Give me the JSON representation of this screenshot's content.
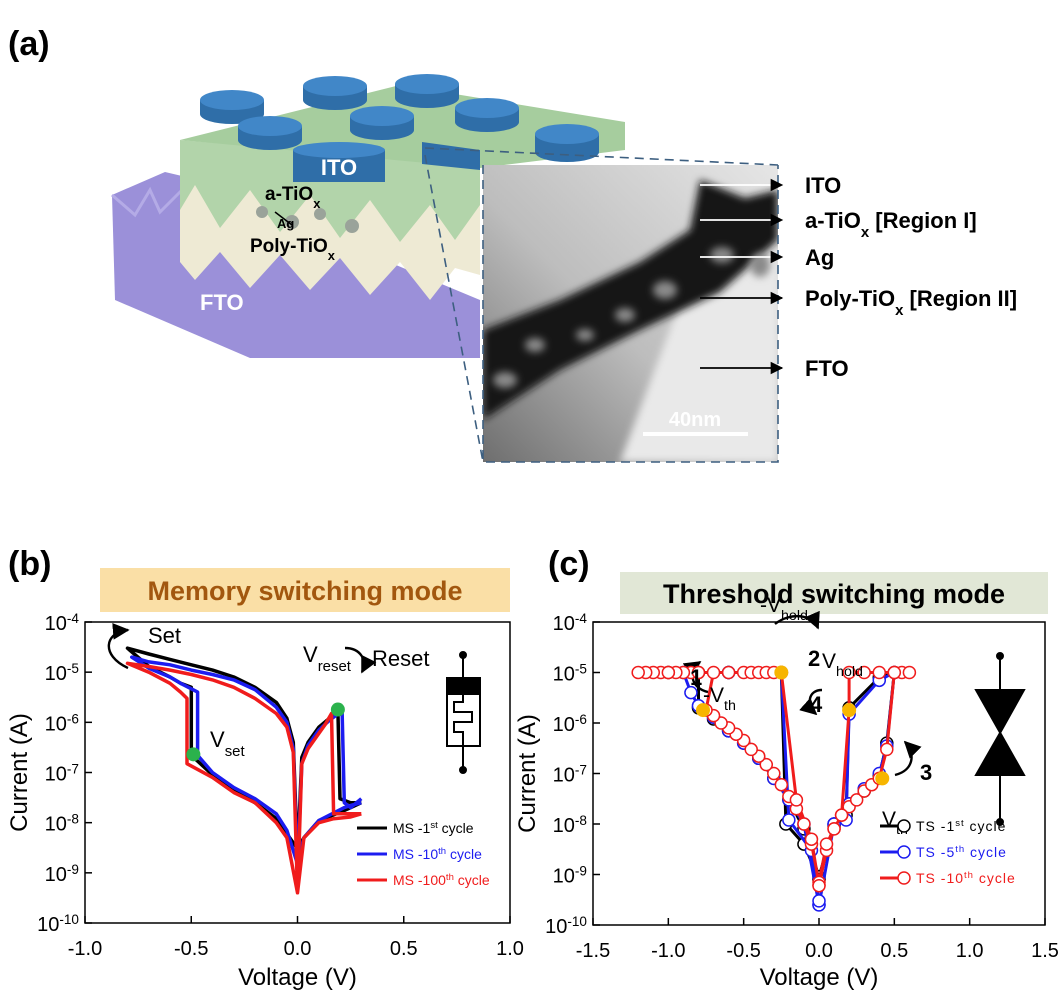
{
  "diagram": {
    "panel_label": "(a)",
    "device_labels": [
      "ITO",
      "a-TiOx",
      "Ag",
      "Poly-TiOx",
      "FTO"
    ],
    "tem_labels": [
      "ITO",
      "a-TiOx [Region I]",
      "Ag",
      "Poly-TiOx [Region II]",
      "FTO"
    ],
    "scale_bar": "40nm"
  },
  "chart_data": [
    {
      "type": "line",
      "panel_label": "(b)",
      "title": "Memory switching mode",
      "x_label": "Voltage (V)",
      "y_label": "Current (A)",
      "log_y": true,
      "xlim": [
        -1,
        1
      ],
      "xticks": [
        {
          "value": -1,
          "label": "-1.0"
        },
        -0.5,
        {
          "value": 0,
          "label": "0.0"
        },
        0.5,
        {
          "value": 1,
          "label": "1.0"
        }
      ],
      "ylim": [
        1e-10,
        0.0001
      ],
      "yticks": [
        {
          "value": 1e-10,
          "label": "10-10"
        },
        {
          "value": 1e-09,
          "label": "10-9"
        },
        {
          "value": 1e-08,
          "label": "10-8"
        },
        {
          "value": 1e-07,
          "label": "10-7"
        },
        {
          "value": 1e-06,
          "label": "10-6"
        },
        {
          "value": 1e-05,
          "label": "10-5"
        },
        {
          "value": 0.0001,
          "label": "10-4"
        }
      ],
      "legend": "lower right",
      "series": [
        {
          "name": "MS -1st cycle",
          "color": "#000000",
          "x": [
            0.3,
            0.25,
            0.2,
            0.1,
            0.03,
            0.0,
            -0.05,
            -0.1,
            -0.2,
            -0.3,
            -0.4,
            -0.5,
            -0.5,
            -0.55,
            -0.6,
            -0.7,
            -0.8,
            -0.7,
            -0.6,
            -0.5,
            -0.4,
            -0.3,
            -0.2,
            -0.1,
            -0.05,
            -0.02,
            0.0,
            0.02,
            0.05,
            0.1,
            0.15,
            0.19,
            0.2,
            0.25,
            0.3
          ],
          "values": [
            2.5e-08,
            2e-08,
            1.6e-08,
            1.1e-08,
            5e-09,
            3e-09,
            6e-09,
            1.2e-08,
            2.5e-08,
            4.5e-08,
            9e-08,
            2.2e-07,
            5e-06,
            6e-06,
            8e-06,
            1.3e-05,
            3e-05,
            2.3e-05,
            1.8e-05,
            1.4e-05,
            1.1e-05,
            8e-06,
            5e-06,
            2.5e-06,
            1.2e-06,
            4e-07,
            2e-09,
            2e-07,
            4e-07,
            8e-07,
            1.2e-06,
            1.7e-06,
            3e-08,
            2.5e-08,
            2.5e-08
          ]
        },
        {
          "name": "MS -10th cycle",
          "color": "#1c1cf0",
          "x": [
            0.3,
            0.25,
            0.22,
            0.1,
            0.03,
            0.0,
            -0.05,
            -0.1,
            -0.2,
            -0.3,
            -0.4,
            -0.47,
            -0.47,
            -0.55,
            -0.6,
            -0.7,
            -0.78,
            -0.7,
            -0.6,
            -0.5,
            -0.4,
            -0.3,
            -0.2,
            -0.1,
            -0.05,
            -0.02,
            0.0,
            0.02,
            0.05,
            0.1,
            0.15,
            0.21,
            0.22,
            0.25,
            0.3
          ],
          "values": [
            2.5e-08,
            2.2e-08,
            2e-08,
            1.1e-08,
            5e-09,
            1.5e-09,
            7e-09,
            1.5e-08,
            3e-08,
            5e-08,
            1e-07,
            2.2e-07,
            4e-06,
            6e-06,
            8e-06,
            1.2e-05,
            2e-05,
            1.6e-05,
            1.4e-05,
            1.1e-05,
            9e-06,
            7e-06,
            4.5e-06,
            2e-06,
            1e-06,
            3e-07,
            1e-09,
            1.5e-07,
            3.5e-07,
            7e-07,
            1.1e-06,
            1.7e-06,
            2.5e-08,
            2e-08,
            3e-08
          ]
        },
        {
          "name": "MS -100th cycle",
          "color": "#f01c1c",
          "x": [
            0.3,
            0.25,
            0.17,
            0.1,
            0.03,
            0.0,
            -0.05,
            -0.1,
            -0.2,
            -0.3,
            -0.4,
            -0.52,
            -0.52,
            -0.55,
            -0.6,
            -0.7,
            -0.8,
            -0.7,
            -0.6,
            -0.5,
            -0.4,
            -0.3,
            -0.2,
            -0.1,
            -0.05,
            -0.02,
            0.0,
            0.02,
            0.05,
            0.1,
            0.13,
            0.16,
            0.17,
            0.25,
            0.3
          ],
          "values": [
            1.5e-08,
            1.3e-08,
            1.2e-08,
            1e-08,
            5e-09,
            4e-10,
            5e-09,
            1e-08,
            2.5e-08,
            4e-08,
            8e-08,
            1.5e-07,
            3e-06,
            4e-06,
            6e-06,
            1e-05,
            1.5e-05,
            1.3e-05,
            1.1e-05,
            9e-06,
            7e-06,
            5e-06,
            3e-06,
            1.5e-06,
            8e-07,
            2.5e-07,
            4e-10,
            1.5e-07,
            3e-07,
            6e-07,
            9e-07,
            1.5e-06,
            1.5e-08,
            1.5e-08,
            1.5e-08
          ]
        }
      ],
      "highlight_points": {
        "color": "#2bb24c",
        "x": [
          -0.49,
          0.19
        ],
        "y": [
          2.3e-07,
          1.8e-06
        ]
      },
      "annotations": [
        "Set",
        "Reset",
        "Vreset",
        "Vset"
      ]
    },
    {
      "type": "line",
      "panel_label": "(c)",
      "title": "Threshold switching mode",
      "x_label": "Voltage (V)",
      "y_label": "Current (A)",
      "log_y": true,
      "marker": "open-circle",
      "xlim": [
        -1.5,
        1.5
      ],
      "xticks": [
        -1.5,
        {
          "value": -1,
          "label": "-1.0"
        },
        -0.5,
        {
          "value": 0,
          "label": "0.0"
        },
        0.5,
        {
          "value": 1,
          "label": "1.0"
        },
        1.5
      ],
      "ylim": [
        1e-10,
        0.0001
      ],
      "yticks": [
        {
          "value": 1e-10,
          "label": "10-10"
        },
        {
          "value": 1e-09,
          "label": "10-9"
        },
        {
          "value": 1e-08,
          "label": "10-8"
        },
        {
          "value": 1e-07,
          "label": "10-7"
        },
        {
          "value": 1e-06,
          "label": "10-6"
        },
        {
          "value": 1e-05,
          "label": "10-5"
        },
        {
          "value": 0.0001,
          "label": "10-4"
        }
      ],
      "legend": "lower right",
      "series": [
        {
          "name": "TS -1st cycle",
          "color": "#000000",
          "x": [
            0,
            0.1,
            0.2,
            0.3,
            0.4,
            0.45,
            0.5,
            0.4,
            0.2,
            0.18,
            0.1,
            0,
            -0.1,
            -0.2,
            -0.3,
            -0.4,
            -0.5,
            -0.6,
            -0.7,
            -0.8,
            -0.8,
            -1.0,
            -0.6,
            -0.25,
            -0.22,
            -0.1,
            0
          ],
          "values": [
            8e-10,
            9e-09,
            2.5e-08,
            4.5e-08,
            9e-08,
            4e-07,
            1e-05,
            8e-06,
            2e-06,
            1.5e-08,
            1e-08,
            9e-10,
            8e-09,
            3e-08,
            8e-08,
            2e-07,
            4e-07,
            7e-07,
            1.2e-06,
            2e-06,
            1e-05,
            1e-05,
            1e-05,
            1e-05,
            1e-08,
            4e-09,
            8e-10
          ]
        },
        {
          "name": "TS -5th cycle",
          "color": "#1c1cf0",
          "x": [
            0,
            0.1,
            0.2,
            0.3,
            0.4,
            0.45,
            0.5,
            0.4,
            0.2,
            0.18,
            0.1,
            0,
            -0.1,
            -0.2,
            -0.3,
            -0.4,
            -0.5,
            -0.6,
            -0.7,
            -0.8,
            -0.85,
            -0.9,
            -0.6,
            -0.25,
            -0.2,
            -0.05,
            0
          ],
          "values": [
            2.5e-10,
            1e-08,
            2.5e-08,
            5e-08,
            1e-07,
            3.5e-07,
            1e-05,
            7e-06,
            1.5e-06,
            1.2e-08,
            1e-08,
            2.5e-10,
            1e-08,
            3e-08,
            8e-08,
            2e-07,
            4e-07,
            7e-07,
            1.3e-06,
            2.2e-06,
            4e-06,
            1e-05,
            1e-05,
            1e-05,
            1.2e-08,
            3e-09,
            3e-10
          ]
        },
        {
          "name": "TS -10th cycle",
          "color": "#f01c1c",
          "x": [
            0,
            0.05,
            0.1,
            0.15,
            0.2,
            0.25,
            0.3,
            0.35,
            0.4,
            0.45,
            0.5,
            0.55,
            0.6,
            0.5,
            0.4,
            0.3,
            0.2,
            0.2,
            0.15,
            0.1,
            0.05,
            0,
            -0.05,
            -0.1,
            -0.15,
            -0.2,
            -0.25,
            -0.3,
            -0.35,
            -0.4,
            -0.45,
            -0.5,
            -0.55,
            -0.6,
            -0.65,
            -0.7,
            -0.75,
            -0.7,
            -0.8,
            -0.85,
            -0.9,
            -0.95,
            -1.0,
            -1.05,
            -1.1,
            -1.15,
            -1.2,
            -1.0,
            -0.8,
            -0.6,
            -0.5,
            -0.45,
            -0.4,
            -0.35,
            -0.3,
            -0.25,
            -0.15,
            -0.05,
            0
          ],
          "values": [
            6e-10,
            3e-09,
            8e-09,
            1.5e-08,
            2.2e-08,
            3e-08,
            4.5e-08,
            6e-08,
            8e-08,
            3e-07,
            1e-05,
            1e-05,
            1e-05,
            1e-05,
            1e-05,
            1e-05,
            1e-05,
            1.8e-06,
            1.5e-08,
            8e-09,
            4e-09,
            7e-10,
            4e-09,
            1e-08,
            2e-08,
            3.5e-08,
            6e-08,
            1e-07,
            1.5e-07,
            2.2e-07,
            3e-07,
            4.5e-07,
            6e-07,
            8e-07,
            1e-06,
            1.4e-06,
            1.8e-06,
            1e-05,
            1e-05,
            1e-05,
            1e-05,
            1e-05,
            1e-05,
            1e-05,
            1e-05,
            1e-05,
            1e-05,
            1e-05,
            1e-05,
            1e-05,
            1e-05,
            1e-05,
            1e-05,
            1e-05,
            1e-05,
            1e-05,
            3e-08,
            5e-09,
            6e-10
          ]
        }
      ],
      "highlight_points": {
        "color": "#f7b500",
        "x": [
          -0.77,
          -0.25,
          0.2,
          0.42
        ],
        "y": [
          1.8e-06,
          1e-05,
          1.8e-06,
          8e-08
        ]
      },
      "annotations": [
        "-Vhold",
        "Vhold",
        "-Vth",
        "Vth",
        "1",
        "2",
        "3",
        "4"
      ]
    }
  ]
}
